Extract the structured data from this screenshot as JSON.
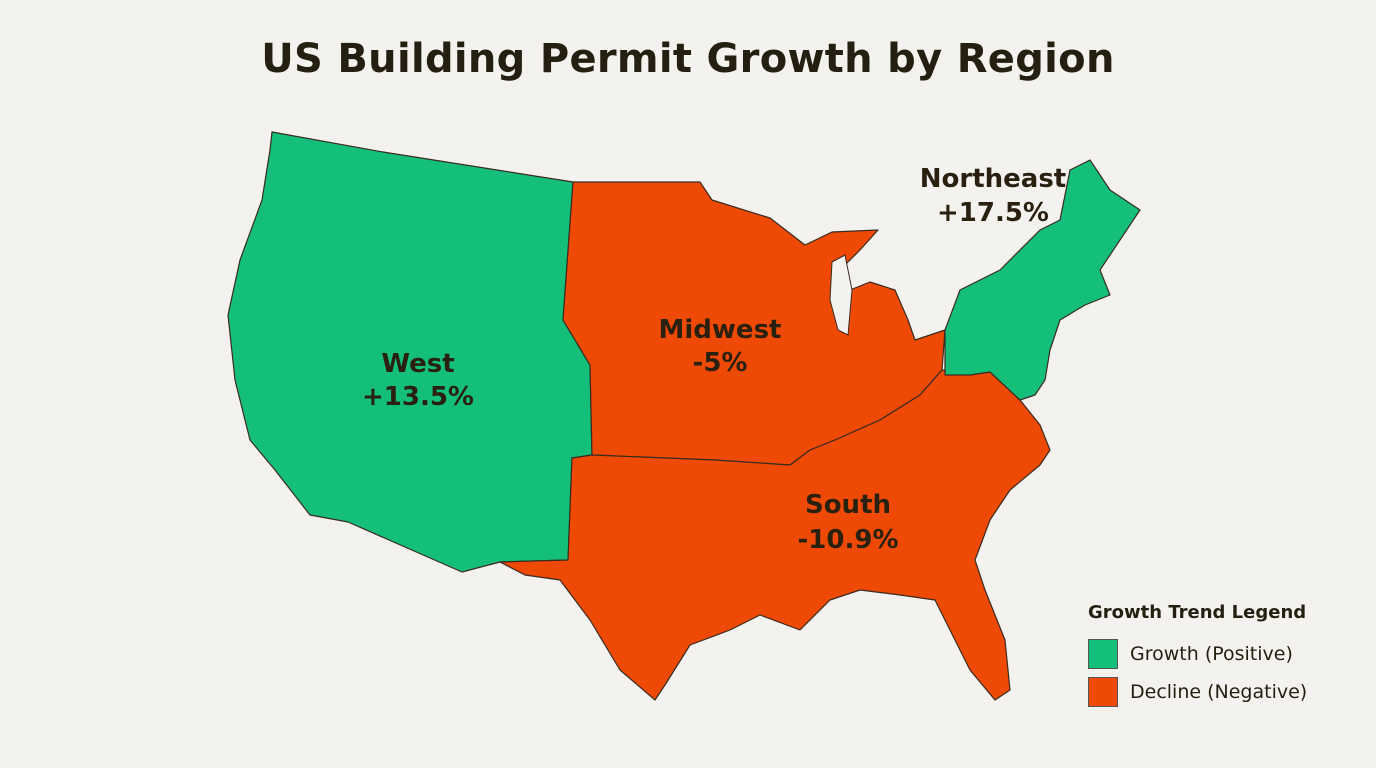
{
  "chart_data": {
    "type": "choropleth",
    "title": "US Building Permit Growth by Region",
    "regions": [
      {
        "name": "West",
        "value": 13.5,
        "label": "+13.5%",
        "trend": "growth"
      },
      {
        "name": "Midwest",
        "value": -5,
        "label": "-5%",
        "trend": "decline"
      },
      {
        "name": "South",
        "value": -10.9,
        "label": "-10.9%",
        "trend": "decline"
      },
      {
        "name": "Northeast",
        "value": 17.5,
        "label": "+17.5%",
        "trend": "growth"
      }
    ],
    "legend": {
      "title": "Growth Trend Legend",
      "placement": "bottom-right",
      "items": [
        {
          "label": "Growth (Positive)",
          "color": "#14bf7a"
        },
        {
          "label": "Decline (Negative)",
          "color": "#ee4a05"
        }
      ]
    }
  }
}
